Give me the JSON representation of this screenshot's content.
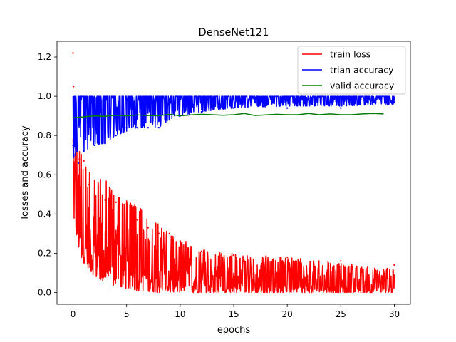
{
  "chart_data": {
    "type": "line",
    "title": "DenseNet121",
    "xlabel": "epochs",
    "ylabel": "losses and accuracy",
    "xlim": [
      -1.5,
      31.5
    ],
    "ylim": [
      -0.06,
      1.28
    ],
    "xticks": [
      0,
      5,
      10,
      15,
      20,
      25,
      30
    ],
    "xtick_labels": [
      "0",
      "5",
      "10",
      "15",
      "20",
      "25",
      "30"
    ],
    "yticks": [
      0.0,
      0.2,
      0.4,
      0.6,
      0.8,
      1.0,
      1.2
    ],
    "ytick_labels": [
      "0.0",
      "0.2",
      "0.4",
      "0.6",
      "0.8",
      "1.0",
      "1.2"
    ],
    "grid": false,
    "legend_position": "upper right",
    "series": [
      {
        "name": "train loss",
        "color": "#ff0000",
        "style": "noisy",
        "x": [
          0,
          0.05,
          0.3,
          0.6,
          1,
          1.5,
          2,
          3,
          4,
          5,
          6,
          7,
          8,
          9,
          10,
          12,
          15,
          20,
          25,
          30
        ],
        "low": [
          0.5,
          0.38,
          0.3,
          0.2,
          0.15,
          0.12,
          0.08,
          0.05,
          0.03,
          0.02,
          0.01,
          0.005,
          0.0,
          0.0,
          0.0,
          0.0,
          0.0,
          0.0,
          0.0,
          0.0
        ],
        "high": [
          1.22,
          1.05,
          0.9,
          0.75,
          0.68,
          0.62,
          0.58,
          0.58,
          0.5,
          0.47,
          0.45,
          0.4,
          0.35,
          0.3,
          0.28,
          0.22,
          0.2,
          0.18,
          0.15,
          0.12
        ],
        "points": [
          1.22,
          1.05,
          0.8,
          0.68,
          0.67,
          0.55,
          0.42,
          0.47,
          0.46,
          0.45,
          0.37,
          0.33,
          0.3,
          0.3,
          0.26,
          0.21,
          0.19,
          0.18,
          0.16,
          0.14
        ]
      },
      {
        "name": "trian accuracy",
        "color": "#0000ff",
        "style": "noisy",
        "x": [
          0,
          0.2,
          0.5,
          1,
          2,
          3,
          4,
          5,
          6,
          7,
          8,
          9,
          10,
          12,
          15,
          20,
          25,
          30
        ],
        "low": [
          0.68,
          0.7,
          0.72,
          0.72,
          0.75,
          0.76,
          0.8,
          0.82,
          0.84,
          0.84,
          0.84,
          0.88,
          0.9,
          0.92,
          0.94,
          0.95,
          0.95,
          0.96
        ],
        "high": [
          0.95,
          0.97,
          1.0,
          1.0,
          1.0,
          1.0,
          1.0,
          1.0,
          1.0,
          1.0,
          1.0,
          1.0,
          1.0,
          1.0,
          1.0,
          1.0,
          1.0,
          1.0
        ],
        "points": [
          0.75,
          0.7,
          0.66,
          0.72,
          0.75,
          0.76,
          0.8,
          0.84,
          0.84,
          0.84,
          0.84,
          0.88,
          0.9,
          0.92,
          0.94,
          0.94,
          0.94,
          0.97
        ]
      },
      {
        "name": "valid accuracy",
        "color": "#008000",
        "style": "smooth",
        "x": [
          0,
          0.5,
          1,
          2,
          3,
          4,
          5,
          6,
          7,
          8,
          9,
          10,
          11,
          12,
          13,
          14,
          15,
          16,
          17,
          18,
          19,
          20,
          21,
          22,
          23,
          24,
          25,
          26,
          27,
          28,
          29
        ],
        "y": [
          0.89,
          0.893,
          0.895,
          0.9,
          0.898,
          0.903,
          0.9,
          0.905,
          0.902,
          0.901,
          0.908,
          0.9,
          0.905,
          0.908,
          0.906,
          0.903,
          0.906,
          0.912,
          0.902,
          0.905,
          0.908,
          0.906,
          0.906,
          0.912,
          0.906,
          0.91,
          0.906,
          0.906,
          0.91,
          0.912,
          0.91
        ]
      }
    ]
  }
}
